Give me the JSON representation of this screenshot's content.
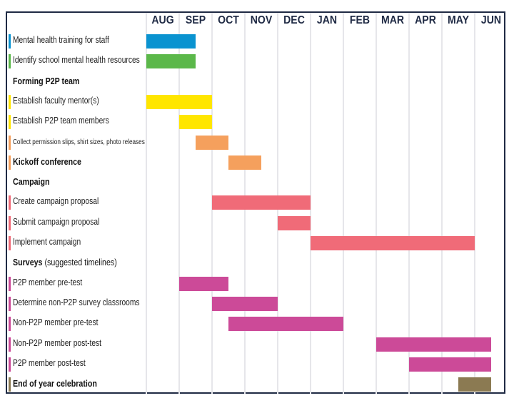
{
  "chart_data": {
    "type": "gantt",
    "title": "",
    "months": [
      "AUG",
      "SEP",
      "OCT",
      "NOV",
      "DEC",
      "JAN",
      "FEB",
      "MAR",
      "APR",
      "MAY",
      "JUN"
    ],
    "grid": true,
    "rows": [
      {
        "label": "Mental health training for staff",
        "kind": "task",
        "color": "#0a93d0",
        "start": 0.0,
        "end": 1.5
      },
      {
        "label": "Identify school mental health resources",
        "kind": "task",
        "color": "#5bb84a",
        "start": 0.0,
        "end": 1.5
      },
      {
        "label": "Forming P2P team",
        "kind": "section"
      },
      {
        "label": "Establish faculty mentor(s)",
        "kind": "task",
        "color": "#ffe600",
        "start": 0.0,
        "end": 2.0
      },
      {
        "label": "Establish P2P team members",
        "kind": "task",
        "color": "#ffe600",
        "start": 1.0,
        "end": 2.0
      },
      {
        "label": "Collect permission slips, shirt sizes, photo releases",
        "kind": "task",
        "small": true,
        "color": "#f5a05d",
        "start": 1.5,
        "end": 2.5
      },
      {
        "label": "Kickoff conference",
        "kind": "task",
        "bold": true,
        "color": "#f5a05d",
        "start": 2.5,
        "end": 3.5
      },
      {
        "label": "Campaign",
        "kind": "section"
      },
      {
        "label": "Create campaign proposal",
        "kind": "task",
        "color": "#f06b78",
        "start": 2.0,
        "end": 5.0
      },
      {
        "label": "Submit campaign proposal",
        "kind": "task",
        "color": "#f06b78",
        "start": 4.0,
        "end": 5.0
      },
      {
        "label": "Implement campaign",
        "kind": "task",
        "color": "#f06b78",
        "start": 5.0,
        "end": 10.0
      },
      {
        "label": "Surveys",
        "sublabel": "(suggested timelines)",
        "kind": "section"
      },
      {
        "label": "P2P member pre-test",
        "kind": "task",
        "color": "#cc4a98",
        "start": 1.0,
        "end": 2.5
      },
      {
        "label": "Determine non-P2P survey classrooms",
        "kind": "task",
        "color": "#cc4a98",
        "start": 2.0,
        "end": 4.0
      },
      {
        "label": "Non-P2P member pre-test",
        "kind": "task",
        "color": "#cc4a98",
        "start": 2.5,
        "end": 6.0
      },
      {
        "label": "Non-P2P member post-test",
        "kind": "task",
        "color": "#cc4a98",
        "start": 7.0,
        "end": 10.5
      },
      {
        "label": "P2P member post-test",
        "kind": "task",
        "color": "#cc4a98",
        "start": 8.0,
        "end": 10.5
      },
      {
        "label": "End of year celebration",
        "kind": "task",
        "bold": true,
        "color": "#8b7a52",
        "start": 9.5,
        "end": 10.5
      }
    ]
  },
  "header": {
    "months": [
      "AUG",
      "SEP",
      "OCT",
      "NOV",
      "DEC",
      "JAN",
      "FEB",
      "MAR",
      "APR",
      "MAY",
      "JUN"
    ]
  },
  "rows": [
    {
      "label": "Mental health training for staff"
    },
    {
      "label": "Identify school mental health resources"
    },
    {
      "label": "Forming P2P team"
    },
    {
      "label": "Establish faculty mentor(s)"
    },
    {
      "label": "Establish P2P team members"
    },
    {
      "label": "Collect permission slips, shirt sizes, photo releases"
    },
    {
      "label": "Kickoff conference"
    },
    {
      "label": "Campaign"
    },
    {
      "label": "Create campaign proposal"
    },
    {
      "label": "Submit campaign proposal"
    },
    {
      "label": "Implement campaign"
    },
    {
      "label": "Surveys",
      "sublabel": "(suggested timelines)"
    },
    {
      "label": "P2P member pre-test"
    },
    {
      "label": "Determine non-P2P survey classrooms"
    },
    {
      "label": "Non-P2P member pre-test"
    },
    {
      "label": "Non-P2P member post-test"
    },
    {
      "label": "P2P member post-test"
    },
    {
      "label": "End of year celebration"
    }
  ],
  "colors": {
    "border": "#1f2a44",
    "gridline": "#e6e6ea",
    "blue": "#0a93d0",
    "green": "#5bb84a",
    "yellow": "#ffe600",
    "orange": "#f5a05d",
    "coral": "#f06b78",
    "magenta": "#cc4a98",
    "olive": "#8b7a52"
  }
}
